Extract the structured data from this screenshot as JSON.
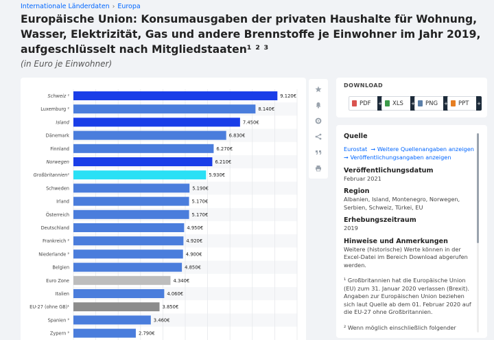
{
  "breadcrumb": [
    "Internationale Länderdaten",
    "Europa"
  ],
  "title": "Europäische Union: Konsumausgaben der privaten Haushalte für Wohnung, Wasser, Elektrizität, Gas und andere Brennstoffe je Einwohner im Jahr 2019, aufgeschlüsselt nach Mitgliedstaaten¹ ² ³",
  "subtitle": "(in Euro je Einwohner)",
  "toolbar": {
    "icons": [
      "star-icon",
      "bell-icon",
      "gear-icon",
      "share-icon",
      "quote-icon",
      "print-icon"
    ]
  },
  "download": {
    "heading": "DOWNLOAD",
    "buttons": [
      {
        "label": "PDF",
        "color": "#d9534f"
      },
      {
        "label": "XLS",
        "color": "#3c9a4a"
      },
      {
        "label": "PNG",
        "color": "#5b7fa8"
      },
      {
        "label": "PPT",
        "color": "#e67e22"
      }
    ]
  },
  "info": {
    "quelle_h": "Quelle",
    "quelle_1": "Eurostat",
    "quelle_link_1": "➞ Weitere Quellenangaben anzeigen",
    "quelle_link_2": "➞ Veröffentlichungsangaben anzeigen",
    "pub_h": "Veröffentlichungsdatum",
    "pub_t": "Februar 2021",
    "region_h": "Region",
    "region_t": "Albanien, Island, Montenegro, Norwegen, Serbien, Schweiz, Türkei, EU",
    "erh_h": "Erhebungszeitraum",
    "erh_t": "2019",
    "hinw_h": "Hinweise und Anmerkungen",
    "hinw_t": "Weitere (historische) Werte können in der Excel-Datei im Bereich Download abgerufen werden.",
    "note1": "¹ Großbritannien hat die Europäische Union (EU) zum 31. Januar 2020 verlassen (Brexit). Angaben zur Europäischen Union beziehen sich laut Quelle ab dem 01. Februar 2020 auf die EU-27 ohne Großbritannien.",
    "note2": "² Wenn möglich einschließlich folgender"
  },
  "chart_data": {
    "type": "bar",
    "orientation": "horizontal",
    "categories": [
      "Schweiz ¹",
      "Luxemburg ²",
      "Island",
      "Dänemark",
      "Finnland",
      "Norwegen",
      "Großbritannien¹",
      "Schweden",
      "Irland",
      "Österreich",
      "Deutschland",
      "Frankreich ²",
      "Niederlande ²",
      "Belgien",
      "Euro Zone",
      "Italien",
      "EU-27 (ohne GB)¹",
      "Spanien ²",
      "Zypern ²"
    ],
    "italic": [
      true,
      false,
      true,
      false,
      false,
      true,
      true,
      false,
      false,
      false,
      false,
      false,
      false,
      false,
      false,
      false,
      false,
      false,
      false
    ],
    "values": [
      9120,
      8140,
      7450,
      6830,
      6270,
      6210,
      5930,
      5190,
      5170,
      5170,
      4950,
      4920,
      4900,
      4850,
      4340,
      4060,
      3850,
      3460,
      2790
    ],
    "value_labels": [
      "9.120€",
      "8.140€",
      "7.450€",
      "6.830€",
      "6.270€",
      "6.210€",
      "5.930€",
      "5.190€",
      "5.170€",
      "5.170€",
      "4.950€",
      "4.920€",
      "4.900€",
      "4.850€",
      "4.340€",
      "4.060€",
      "3.850€",
      "3.460€",
      "2.790€"
    ],
    "colors": [
      "#1a3ee8",
      "#4a7ddc",
      "#1a3ee8",
      "#4a7ddc",
      "#4a7ddc",
      "#1a3ee8",
      "#2ae0f5",
      "#4a7ddc",
      "#4a7ddc",
      "#4a7ddc",
      "#4a7ddc",
      "#4a7ddc",
      "#4a7ddc",
      "#4a7ddc",
      "#bdbdbd",
      "#4a7ddc",
      "#8c8c8c",
      "#4a7ddc",
      "#4a7ddc"
    ],
    "xlim": [
      0,
      10000
    ],
    "grid": true
  }
}
